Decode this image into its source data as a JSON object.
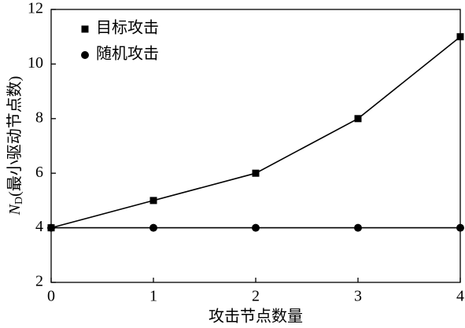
{
  "chart_data": {
    "type": "line",
    "xlabel": "攻击节点数量",
    "ylabel": {
      "symbol": "N",
      "subscript": "D",
      "text": "(最小驱动节点数)"
    },
    "x": [
      0,
      1,
      2,
      3,
      4
    ],
    "series": [
      {
        "name": "目标攻击",
        "color": "#000000",
        "marker": "square",
        "values": [
          4,
          5,
          6,
          8,
          11
        ]
      },
      {
        "name": "随机攻击",
        "color": "#000000",
        "marker": "circle",
        "values": [
          4,
          4,
          4,
          4,
          4
        ]
      }
    ],
    "xlim": [
      0,
      4
    ],
    "xticks": [
      0,
      1,
      2,
      3,
      4
    ],
    "ylim": [
      2,
      12
    ],
    "yticks": [
      2,
      4,
      6,
      8,
      10,
      12
    ],
    "legend": "upper-left",
    "grid": false
  }
}
